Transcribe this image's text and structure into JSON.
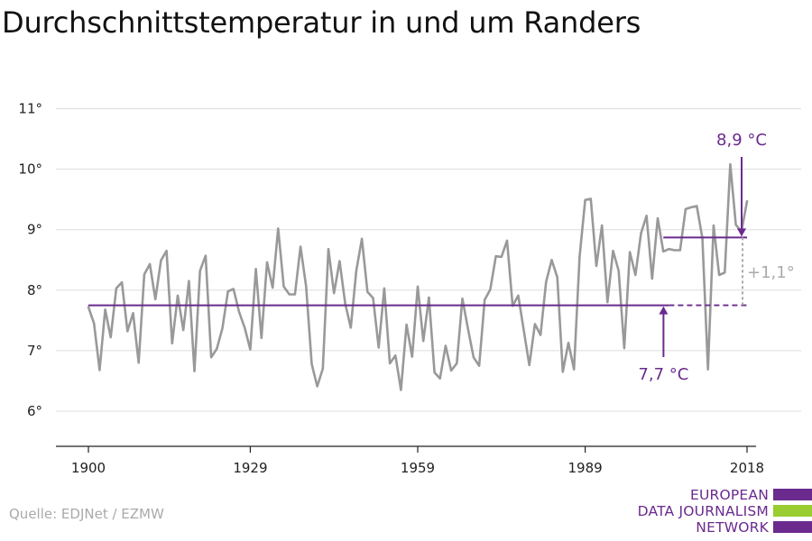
{
  "chart_data": {
    "type": "line",
    "title": "Durchschnittstemperatur in und um Randers",
    "xlabel": "",
    "ylabel": "",
    "xlim": [
      1900,
      2018
    ],
    "ylim": [
      5.5,
      11.2
    ],
    "x_ticks": [
      "1900",
      "1929",
      "1959",
      "1989",
      "2018"
    ],
    "y_ticks": [
      "6°",
      "7°",
      "8°",
      "9°",
      "10°",
      "11°"
    ],
    "grid": true,
    "colors": {
      "series": "#999999",
      "mean": "#6a2a8e",
      "diff": "#aaaaaa"
    },
    "series": [
      {
        "x": [
          1900,
          1901,
          1902,
          1903,
          1904,
          1905,
          1906,
          1907,
          1908,
          1909,
          1910,
          1911,
          1912,
          1913,
          1914,
          1915,
          1916,
          1917,
          1918,
          1919,
          1920,
          1921,
          1922,
          1923,
          1924,
          1925,
          1926,
          1927,
          1928,
          1929,
          1930,
          1931,
          1932,
          1933,
          1934,
          1935,
          1936,
          1937,
          1938,
          1939,
          1940,
          1941,
          1942,
          1943,
          1944,
          1945,
          1946,
          1947,
          1948,
          1949,
          1950,
          1951,
          1952,
          1953,
          1954,
          1955,
          1956,
          1957,
          1958,
          1959,
          1960,
          1961,
          1962,
          1963,
          1964,
          1965,
          1966,
          1967,
          1968,
          1969,
          1970,
          1971,
          1972,
          1973,
          1974,
          1975,
          1976,
          1977,
          1978,
          1979,
          1980,
          1981,
          1982,
          1983,
          1984,
          1985,
          1986,
          1987,
          1988,
          1989,
          1990,
          1991,
          1992,
          1993,
          1994,
          1995,
          1996,
          1997,
          1998,
          1999,
          2000,
          2001,
          2002,
          2003,
          2004,
          2005,
          2006,
          2007,
          2008,
          2009,
          2010,
          2011,
          2012,
          2013,
          2014,
          2015,
          2016,
          2017,
          2018
        ],
        "values": [
          7.72,
          7.45,
          6.68,
          7.68,
          7.22,
          8.03,
          8.13,
          7.32,
          7.62,
          6.8,
          8.26,
          8.43,
          7.85,
          8.49,
          8.65,
          7.12,
          7.91,
          7.34,
          8.15,
          6.66,
          8.32,
          8.57,
          6.89,
          7.03,
          7.37,
          7.98,
          8.02,
          7.64,
          7.38,
          7.02,
          8.35,
          7.21,
          8.46,
          8.04,
          9.02,
          8.06,
          7.93,
          7.93,
          8.72,
          8.06,
          6.78,
          6.41,
          6.7,
          8.68,
          7.95,
          8.48,
          7.78,
          7.38,
          8.32,
          8.85,
          7.97,
          7.87,
          7.05,
          8.03,
          6.79,
          6.92,
          6.35,
          7.43,
          6.9,
          8.06,
          7.16,
          7.88,
          6.64,
          6.54,
          7.08,
          6.67,
          6.79,
          7.86,
          7.36,
          6.89,
          6.75,
          7.84,
          8.01,
          8.56,
          8.55,
          8.82,
          7.74,
          7.91,
          7.34,
          6.76,
          7.44,
          7.26,
          8.14,
          8.5,
          8.21,
          6.65,
          7.13,
          6.69,
          8.55,
          9.49,
          9.51,
          8.4,
          9.07,
          7.8,
          8.65,
          8.32,
          7.04,
          8.63,
          8.25,
          8.94,
          9.23,
          8.19,
          9.19,
          8.64,
          8.68,
          8.66,
          8.66,
          9.34,
          9.37,
          9.39,
          8.86,
          6.69,
          9.07,
          8.25,
          8.29,
          10.08,
          9.08,
          8.97,
          9.47
        ]
      }
    ],
    "mean_lines": [
      {
        "x_start": 1900,
        "x_end": 2004,
        "value": 7.75
      },
      {
        "x_start": 2003,
        "x_end": 2018,
        "value": 8.87
      }
    ],
    "dashed_extension": {
      "x_start": 2004,
      "x_end": 2018,
      "value": 7.75
    },
    "annotations": {
      "recent_mean": "8,9 °C",
      "base_mean": "7,7 °C",
      "difference": "+1,1°"
    }
  },
  "source": "Quelle: EDJNet / EZMW",
  "logo": {
    "lines": [
      "EUROPEAN",
      "DATA JOURNALISM",
      "NETWORK"
    ],
    "bar_colors": [
      "#6a2a8e",
      "#9acd32",
      "#6a2a8e"
    ]
  }
}
